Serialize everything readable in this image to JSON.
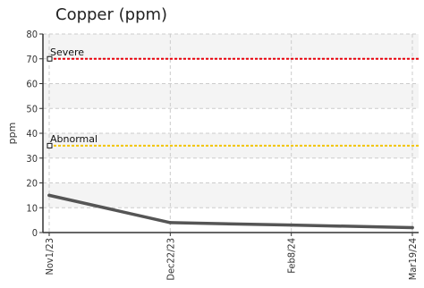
{
  "chart_data": {
    "type": "line",
    "title": "Copper (ppm)",
    "xlabel": "",
    "ylabel": "ppm",
    "ylim": [
      0,
      80
    ],
    "yticks": [
      0,
      10,
      20,
      30,
      40,
      50,
      60,
      70,
      80
    ],
    "categories": [
      "Nov1/23",
      "Dec22/23",
      "Feb8/24",
      "Mar19/24"
    ],
    "series": [
      {
        "values": [
          15,
          4,
          3,
          2
        ],
        "color": "#555555"
      }
    ],
    "thresholds": [
      {
        "name": "Severe",
        "value": 70,
        "color": "#e8000b"
      },
      {
        "name": "Abnormal",
        "value": 35,
        "color": "#f2c400"
      }
    ],
    "grid": true,
    "band_colors": [
      "#f4f4f4",
      "#ffffff"
    ]
  }
}
